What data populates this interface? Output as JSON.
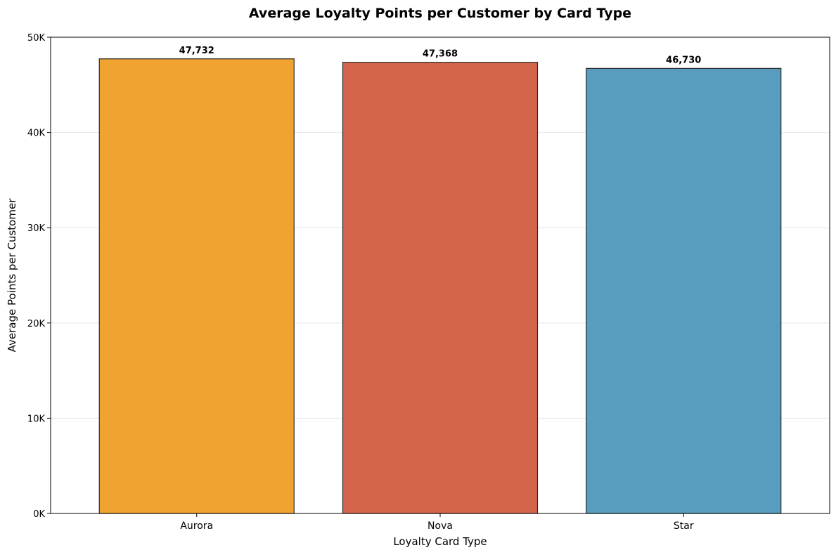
{
  "chart_data": {
    "type": "bar",
    "title": "Average Loyalty Points per Customer by Card Type",
    "xlabel": "Loyalty Card Type",
    "ylabel": "Average Points per Customer",
    "categories": [
      "Aurora",
      "Nova",
      "Star"
    ],
    "values": [
      47732,
      47368,
      46730
    ],
    "value_labels": [
      "47,732",
      "47,368",
      "46,730"
    ],
    "colors": [
      "#f0a330",
      "#d4654c",
      "#589dbd"
    ],
    "ylim": [
      0,
      50000
    ],
    "yticks": [
      0,
      10000,
      20000,
      30000,
      40000,
      50000
    ],
    "ytick_labels": [
      "0K",
      "10K",
      "20K",
      "30K",
      "40K",
      "50K"
    ],
    "grid": true,
    "legend": "none"
  }
}
